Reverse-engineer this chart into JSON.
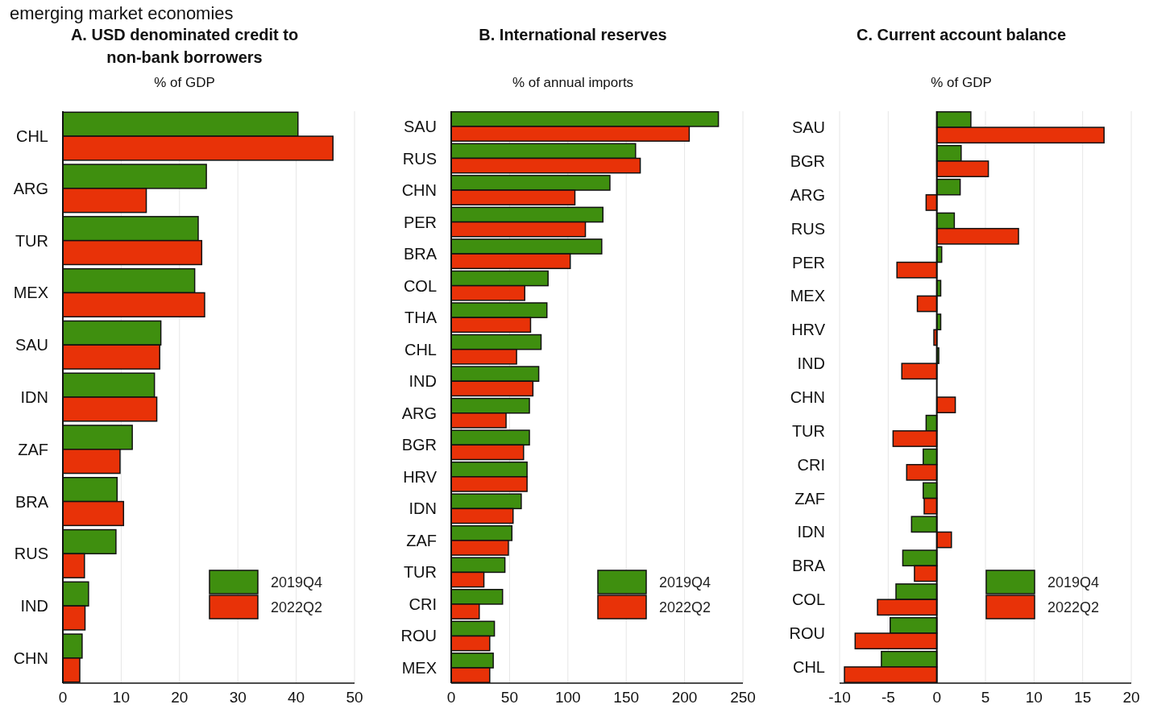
{
  "chart_data": [
    {
      "type": "bar",
      "orientation": "horizontal",
      "title": "A. USD denominated credit to non-bank borrowers",
      "subtitle": "% of GDP",
      "annotations": [
        "emerging market economies"
      ],
      "categories": [
        "CHL",
        "ARG",
        "TUR",
        "MEX",
        "SAU",
        "IDN",
        "ZAF",
        "BRA",
        "RUS",
        "IND",
        "CHN"
      ],
      "series": [
        {
          "name": "2019Q4",
          "color": "#3f8f0f",
          "values": [
            40.3,
            24.6,
            23.2,
            22.6,
            16.8,
            15.7,
            11.9,
            9.3,
            9.1,
            4.4,
            3.3
          ]
        },
        {
          "name": "2022Q2",
          "color": "#e83208",
          "values": [
            46.3,
            14.3,
            23.8,
            24.3,
            16.6,
            16.1,
            9.8,
            10.4,
            3.7,
            3.8,
            2.9
          ]
        }
      ],
      "xlim": [
        0,
        50
      ],
      "xticks": [
        0,
        10,
        20,
        30,
        40,
        50
      ],
      "grid": "x",
      "legend": "bottom right"
    },
    {
      "type": "bar",
      "orientation": "horizontal",
      "title": "B. International reserves",
      "subtitle": "% of annual imports",
      "categories": [
        "SAU",
        "RUS",
        "CHN",
        "PER",
        "BRA",
        "COL",
        "THA",
        "CHL",
        "IND",
        "ARG",
        "BGR",
        "HRV",
        "IDN",
        "ZAF",
        "TUR",
        "CRI",
        "ROU",
        "MEX"
      ],
      "series": [
        {
          "name": "2019Q4",
          "color": "#3f8f0f",
          "values": [
            229,
            158,
            136,
            130,
            129,
            83,
            82,
            77,
            75,
            67,
            67,
            65,
            60,
            52,
            46,
            44,
            37,
            36
          ]
        },
        {
          "name": "2022Q2",
          "color": "#e83208",
          "values": [
            204,
            162,
            106,
            115,
            102,
            63,
            68,
            56,
            70,
            47,
            62,
            65,
            53,
            49,
            28,
            24,
            33,
            33
          ]
        }
      ],
      "xlim": [
        0,
        250
      ],
      "xticks": [
        0,
        50,
        100,
        150,
        200,
        250
      ],
      "grid": "x",
      "legend": "bottom right"
    },
    {
      "type": "bar",
      "orientation": "horizontal",
      "title": "C. Current account balance",
      "subtitle": "% of GDP",
      "categories": [
        "SAU",
        "BGR",
        "ARG",
        "RUS",
        "PER",
        "MEX",
        "HRV",
        "IND",
        "CHN",
        "TUR",
        "CRI",
        "ZAF",
        "IDN",
        "BRA",
        "COL",
        "ROU",
        "CHL"
      ],
      "series": [
        {
          "name": "2019Q4",
          "color": "#3f8f0f",
          "values": [
            3.5,
            2.5,
            2.4,
            1.8,
            0.5,
            0.4,
            0.4,
            0.2,
            null,
            -1.1,
            -1.4,
            -1.4,
            -2.6,
            -3.5,
            -4.2,
            -4.8,
            -5.7
          ]
        },
        {
          "name": "2022Q2",
          "color": "#e83208",
          "values": [
            17.2,
            5.3,
            -1.1,
            8.4,
            -4.1,
            -2.0,
            -0.3,
            -3.6,
            1.9,
            -4.5,
            -3.1,
            -1.3,
            1.5,
            -2.3,
            -6.1,
            -8.4,
            -9.5
          ]
        }
      ],
      "xlim": [
        -10,
        20
      ],
      "xticks": [
        -10,
        -5,
        0,
        5,
        10,
        15,
        20
      ],
      "grid": "x",
      "legend": "bottom right"
    }
  ]
}
